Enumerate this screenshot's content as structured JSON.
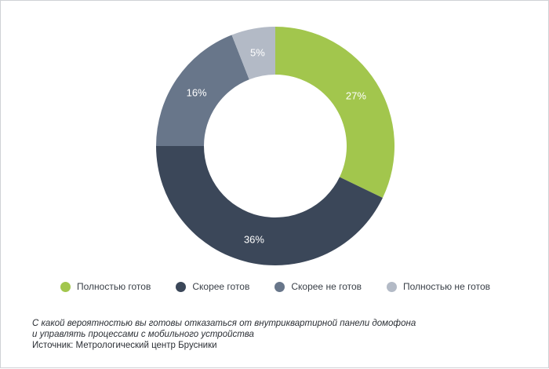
{
  "chart_data": {
    "type": "pie",
    "donut": true,
    "categories": [
      "Полностью готов",
      "Скорее готов",
      "Скорее не готов",
      "Полностью не готов"
    ],
    "values": [
      27,
      36,
      16,
      5
    ],
    "labels": [
      "27%",
      "36%",
      "16%",
      "5%"
    ],
    "colors": [
      "#a2c64d",
      "#3b4759",
      "#68768a",
      "#b3bac6"
    ],
    "legend_position": "bottom"
  },
  "caption": {
    "question_line1": "С какой вероятностью вы готовы отказаться от внутриквартирной панели домофона",
    "question_line2": "и управлять процессами с мобильного устройства",
    "source": "Источник: Метрологический центр Брусники"
  }
}
